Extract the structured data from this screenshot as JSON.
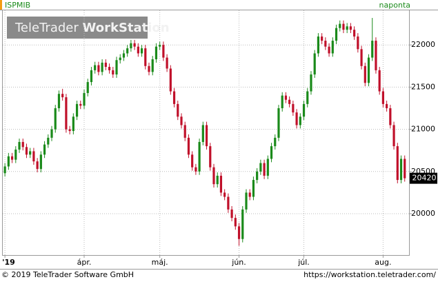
{
  "chart_data": {
    "type": "candlestick",
    "title": "ISPMIB",
    "period": "naponta",
    "watermark": [
      "TeleTrader",
      "WorkStation"
    ],
    "footer_left": "© 2019 TeleTrader Software GmbH",
    "footer_right": "https://workstation.teletrader.com/",
    "up_color": "#1a8a1a",
    "down_color": "#c0102a",
    "ylim": [
      19510,
      22410
    ],
    "yticks": [
      20000,
      20500,
      21000,
      21500,
      22000
    ],
    "grid": true,
    "xlim": [
      -0.6,
      112.2
    ],
    "xticks": [
      {
        "value": 0,
        "label": "'19"
      },
      {
        "value": 22,
        "label": "ápr."
      },
      {
        "value": 43,
        "label": "máj."
      },
      {
        "value": 65,
        "label": "jún."
      },
      {
        "value": 83,
        "label": "júl."
      },
      {
        "value": 105,
        "label": "aug."
      }
    ],
    "candles": [
      [
        20480,
        20600,
        20440,
        20560
      ],
      [
        20560,
        20720,
        20520,
        20680
      ],
      [
        20680,
        20720,
        20600,
        20640
      ],
      [
        20640,
        20800,
        20600,
        20760
      ],
      [
        20760,
        20890,
        20720,
        20850
      ],
      [
        20850,
        20890,
        20750,
        20790
      ],
      [
        20790,
        20830,
        20660,
        20700
      ],
      [
        20700,
        20780,
        20660,
        20740
      ],
      [
        20740,
        20780,
        20580,
        20620
      ],
      [
        20620,
        20660,
        20490,
        20530
      ],
      [
        20530,
        20740,
        20490,
        20700
      ],
      [
        20700,
        20860,
        20660,
        20820
      ],
      [
        20820,
        20940,
        20780,
        20900
      ],
      [
        20900,
        21040,
        20860,
        21000
      ],
      [
        21000,
        21290,
        20960,
        21250
      ],
      [
        21250,
        21460,
        21210,
        21420
      ],
      [
        21420,
        21480,
        21340,
        21380
      ],
      [
        21380,
        21420,
        20960,
        21000
      ],
      [
        21000,
        21040,
        20940,
        20980
      ],
      [
        20980,
        21190,
        20940,
        21150
      ],
      [
        21150,
        21340,
        21110,
        21300
      ],
      [
        21300,
        21340,
        21240,
        21280
      ],
      [
        21280,
        21470,
        21240,
        21430
      ],
      [
        21430,
        21600,
        21390,
        21560
      ],
      [
        21560,
        21740,
        21520,
        21700
      ],
      [
        21700,
        21800,
        21660,
        21760
      ],
      [
        21760,
        21800,
        21640,
        21680
      ],
      [
        21680,
        21830,
        21640,
        21790
      ],
      [
        21790,
        21830,
        21700,
        21740
      ],
      [
        21740,
        21780,
        21660,
        21700
      ],
      [
        21700,
        21740,
        21610,
        21650
      ],
      [
        21650,
        21860,
        21610,
        21820
      ],
      [
        21820,
        21890,
        21780,
        21850
      ],
      [
        21850,
        21940,
        21810,
        21900
      ],
      [
        21900,
        22000,
        21860,
        21960
      ],
      [
        21960,
        22060,
        21920,
        22020
      ],
      [
        22020,
        22060,
        21940,
        21980
      ],
      [
        21980,
        22020,
        21860,
        21900
      ],
      [
        21900,
        22000,
        21860,
        21960
      ],
      [
        21960,
        22000,
        21710,
        21750
      ],
      [
        21750,
        21790,
        21640,
        21680
      ],
      [
        21680,
        21870,
        21640,
        21830
      ],
      [
        21830,
        22020,
        21790,
        21980
      ],
      [
        21980,
        22040,
        21940,
        22000
      ],
      [
        22000,
        22040,
        21810,
        21850
      ],
      [
        21850,
        21890,
        21680,
        21720
      ],
      [
        21720,
        21760,
        21410,
        21450
      ],
      [
        21450,
        21490,
        21260,
        21300
      ],
      [
        21300,
        21340,
        21110,
        21150
      ],
      [
        21150,
        21190,
        21010,
        21050
      ],
      [
        21050,
        21090,
        20860,
        20900
      ],
      [
        20900,
        20940,
        20660,
        20700
      ],
      [
        20700,
        20740,
        20510,
        20550
      ],
      [
        20550,
        20590,
        20460,
        20500
      ],
      [
        20500,
        20890,
        20460,
        20850
      ],
      [
        20850,
        21090,
        20810,
        21050
      ],
      [
        21050,
        21090,
        20760,
        20800
      ],
      [
        20800,
        20840,
        20510,
        20550
      ],
      [
        20550,
        20590,
        20310,
        20350
      ],
      [
        20350,
        20490,
        20310,
        20450
      ],
      [
        20450,
        20490,
        20210,
        20250
      ],
      [
        20250,
        20290,
        20160,
        20200
      ],
      [
        20200,
        20240,
        20010,
        20050
      ],
      [
        20050,
        20090,
        19910,
        19950
      ],
      [
        19950,
        19990,
        19810,
        19850
      ],
      [
        19850,
        19890,
        19620,
        19700
      ],
      [
        19700,
        20090,
        19660,
        20050
      ],
      [
        20050,
        20290,
        20010,
        20250
      ],
      [
        20250,
        20290,
        20160,
        20200
      ],
      [
        20200,
        20440,
        20160,
        20400
      ],
      [
        20400,
        20540,
        20360,
        20500
      ],
      [
        20500,
        20640,
        20460,
        20600
      ],
      [
        20600,
        20640,
        20410,
        20450
      ],
      [
        20450,
        20690,
        20410,
        20650
      ],
      [
        20650,
        20840,
        20610,
        20800
      ],
      [
        20800,
        20940,
        20760,
        20900
      ],
      [
        20900,
        21290,
        20860,
        21250
      ],
      [
        21250,
        21440,
        21210,
        21400
      ],
      [
        21400,
        21440,
        21310,
        21350
      ],
      [
        21350,
        21390,
        21260,
        21300
      ],
      [
        21300,
        21340,
        21160,
        21200
      ],
      [
        21200,
        21240,
        21010,
        21050
      ],
      [
        21050,
        21190,
        21010,
        21150
      ],
      [
        21150,
        21340,
        21110,
        21300
      ],
      [
        21300,
        21490,
        21260,
        21450
      ],
      [
        21450,
        21690,
        21410,
        21650
      ],
      [
        21650,
        21940,
        21610,
        21900
      ],
      [
        21900,
        22140,
        21860,
        22100
      ],
      [
        22100,
        22140,
        22010,
        22050
      ],
      [
        22050,
        22090,
        21940,
        21980
      ],
      [
        21980,
        22020,
        21860,
        21900
      ],
      [
        21900,
        22090,
        21860,
        22050
      ],
      [
        22050,
        22240,
        22010,
        22200
      ],
      [
        22200,
        22290,
        22160,
        22250
      ],
      [
        22250,
        22290,
        22140,
        22180
      ],
      [
        22180,
        22260,
        22140,
        22220
      ],
      [
        22220,
        22260,
        22140,
        22180
      ],
      [
        22180,
        22220,
        22060,
        22100
      ],
      [
        22100,
        22140,
        21910,
        21950
      ],
      [
        21950,
        21990,
        21710,
        21750
      ],
      [
        21750,
        21790,
        21510,
        21550
      ],
      [
        21550,
        21890,
        21510,
        21850
      ],
      [
        21850,
        22320,
        21810,
        22050
      ],
      [
        22050,
        22090,
        21660,
        21700
      ],
      [
        21700,
        21740,
        21410,
        21450
      ],
      [
        21450,
        21490,
        21260,
        21300
      ],
      [
        21300,
        21340,
        21210,
        21250
      ],
      [
        21250,
        21290,
        21010,
        21050
      ],
      [
        21050,
        21090,
        20760,
        20800
      ],
      [
        20800,
        20840,
        20360,
        20400
      ],
      [
        20400,
        20690,
        20360,
        20650
      ],
      [
        20650,
        20690,
        20380,
        20420
      ]
    ]
  }
}
